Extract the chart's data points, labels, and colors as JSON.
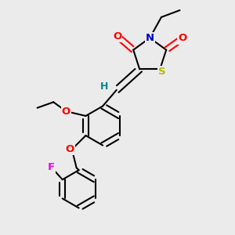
{
  "bg_color": "#ebebeb",
  "bond_color": "#000000",
  "bond_width": 1.5,
  "dbo": 0.012,
  "atom_colors": {
    "O": "#ff0000",
    "N": "#0000cc",
    "S": "#b8b800",
    "F": "#ee00ee",
    "H": "#008888",
    "C": "#000000"
  },
  "font_size": 9.5,
  "fig_size": [
    3.0,
    3.0
  ],
  "dpi": 100
}
